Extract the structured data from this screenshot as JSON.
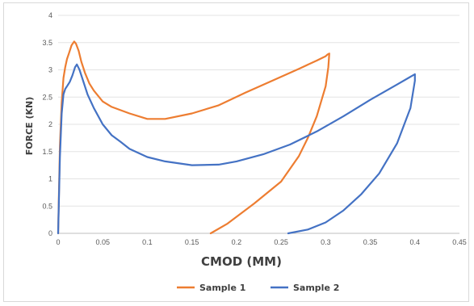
{
  "chart_data": {
    "type": "line",
    "title": "",
    "xlabel": "CMOD (MM)",
    "ylabel": "FORCE (KN)",
    "xlim": [
      0,
      0.45
    ],
    "ylim": [
      0,
      4
    ],
    "x_ticks": [
      0,
      0.05,
      0.1,
      0.15,
      0.2,
      0.25,
      0.3,
      0.35,
      0.4,
      0.45
    ],
    "y_ticks": [
      0,
      0.5,
      1,
      1.5,
      2,
      2.5,
      3,
      3.5,
      4
    ],
    "x_tick_labels": [
      "0",
      "0.05",
      "0.1",
      "0.15",
      "0.2",
      "0.25",
      "0.3",
      "0.35",
      "0.4",
      "0.45"
    ],
    "y_tick_labels": [
      "0",
      "0.5",
      "1",
      "1.5",
      "2",
      "2.5",
      "3",
      "3.5",
      "4"
    ],
    "grid": "horizontal",
    "legend_position": "bottom",
    "series": [
      {
        "name": "Sample 1",
        "color": "#ED7D31",
        "x": [
          0,
          0.002,
          0.004,
          0.006,
          0.008,
          0.01,
          0.012,
          0.015,
          0.018,
          0.02,
          0.023,
          0.026,
          0.03,
          0.035,
          0.04,
          0.05,
          0.06,
          0.08,
          0.1,
          0.12,
          0.15,
          0.18,
          0.21,
          0.24,
          0.27,
          0.29,
          0.3,
          0.302,
          0.304,
          0.303,
          0.3,
          0.29,
          0.28,
          0.27,
          0.25,
          0.22,
          0.19,
          0.171
        ],
        "y": [
          0,
          1.6,
          2.4,
          2.85,
          3.05,
          3.2,
          3.3,
          3.45,
          3.52,
          3.48,
          3.35,
          3.15,
          2.95,
          2.75,
          2.62,
          2.42,
          2.32,
          2.2,
          2.1,
          2.1,
          2.2,
          2.35,
          2.58,
          2.8,
          3.02,
          3.17,
          3.25,
          3.28,
          3.3,
          3.05,
          2.7,
          2.15,
          1.75,
          1.42,
          0.95,
          0.55,
          0.18,
          0
        ]
      },
      {
        "name": "Sample 2",
        "color": "#4472C4",
        "x": [
          0,
          0.002,
          0.004,
          0.006,
          0.008,
          0.01,
          0.013,
          0.016,
          0.019,
          0.021,
          0.024,
          0.028,
          0.033,
          0.04,
          0.05,
          0.06,
          0.07,
          0.08,
          0.1,
          0.12,
          0.15,
          0.18,
          0.2,
          0.23,
          0.26,
          0.29,
          0.32,
          0.35,
          0.38,
          0.4,
          0.4,
          0.395,
          0.38,
          0.36,
          0.34,
          0.32,
          0.3,
          0.28,
          0.258
        ],
        "y": [
          0,
          1.4,
          2.2,
          2.55,
          2.65,
          2.7,
          2.78,
          2.9,
          3.05,
          3.1,
          3.0,
          2.8,
          2.55,
          2.3,
          2.0,
          1.8,
          1.68,
          1.55,
          1.4,
          1.32,
          1.25,
          1.26,
          1.32,
          1.45,
          1.63,
          1.87,
          2.15,
          2.45,
          2.73,
          2.92,
          2.8,
          2.3,
          1.65,
          1.1,
          0.72,
          0.42,
          0.2,
          0.07,
          0
        ]
      }
    ]
  }
}
